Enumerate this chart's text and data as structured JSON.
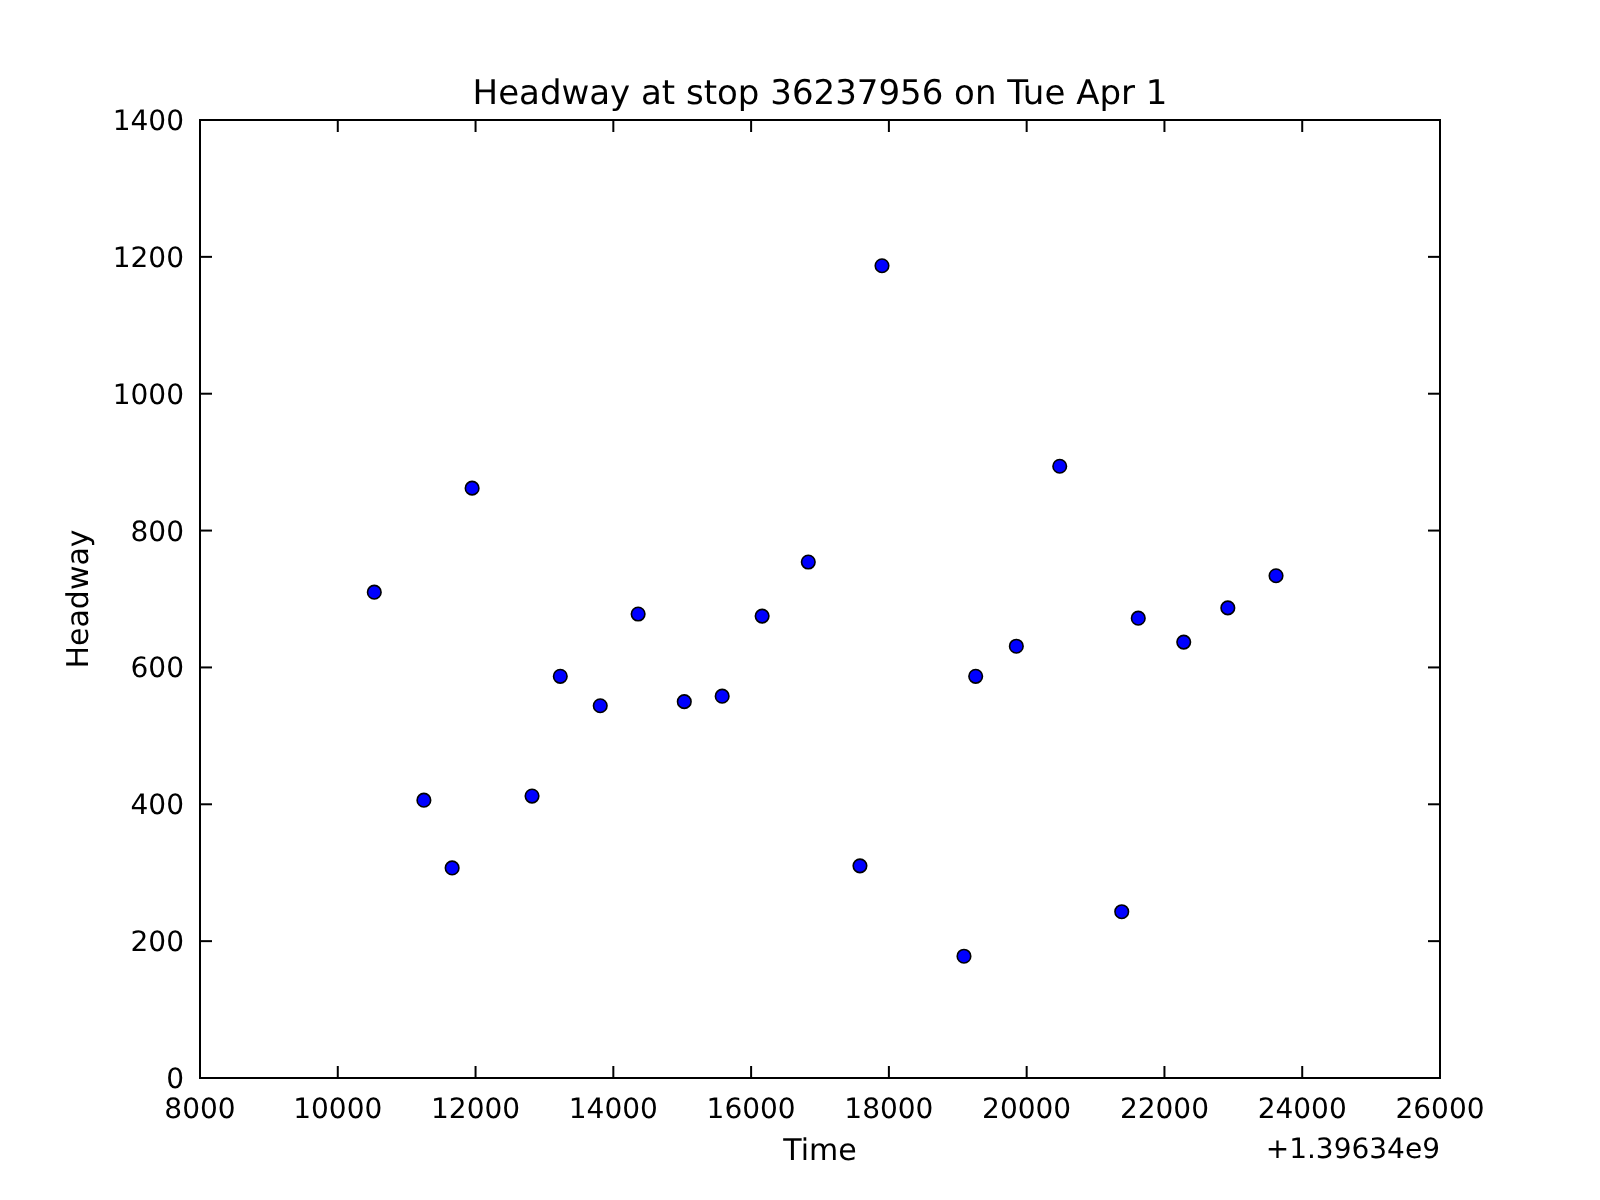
{
  "chart_data": {
    "type": "scatter",
    "title": "Headway at stop 36237956 on Tue Apr 1",
    "xlabel": "Time",
    "ylabel": "Headway",
    "annotations": [
      "+1.39634e9"
    ],
    "x": [
      10530,
      11250,
      11660,
      11950,
      12820,
      13230,
      13810,
      14360,
      15030,
      15580,
      16160,
      16830,
      17580,
      17900,
      19090,
      19260,
      19850,
      20480,
      21380,
      21620,
      22280,
      22920,
      23620
    ],
    "series": [
      {
        "color": "#0000ff",
        "values": [
          710,
          406,
          307,
          862,
          412,
          587,
          544,
          678,
          550,
          558,
          675,
          754,
          310,
          1187,
          178,
          587,
          631,
          894,
          243,
          672,
          637,
          687,
          734
        ]
      }
    ],
    "marker": "circle",
    "xlim": [
      8000,
      26000
    ],
    "xticks": [
      8000,
      10000,
      12000,
      14000,
      16000,
      18000,
      20000,
      22000,
      24000,
      26000
    ],
    "ylim": [
      0,
      1400
    ],
    "yticks": [
      0,
      200,
      400,
      600,
      800,
      1000,
      1200,
      1400
    ],
    "grid": false
  }
}
